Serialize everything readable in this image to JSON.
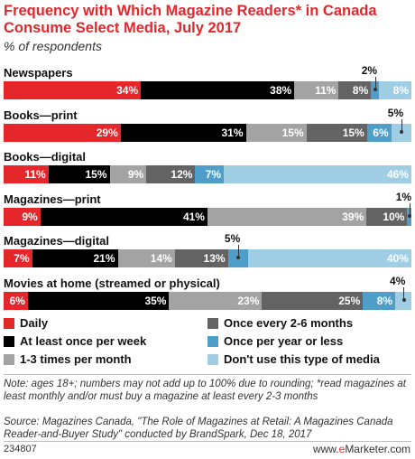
{
  "chart_data": {
    "type": "bar",
    "orientation": "horizontal",
    "stacked": true,
    "title": "Frequency with Which Magazine Readers* in Canada Consume Select Media, July 2017",
    "subtitle": "% of respondents",
    "categories": [
      "Newspapers",
      "Books—print",
      "Books—digital",
      "Magazines—print",
      "Magazines—digital",
      "Movies at home (streamed or physical)"
    ],
    "series": [
      {
        "name": "Daily",
        "color": "#e5262b",
        "values": [
          34,
          29,
          11,
          9,
          7,
          6
        ],
        "labels": [
          "34%",
          "29%",
          "11%",
          "9%",
          "7%",
          "6%"
        ]
      },
      {
        "name": "At least once per week",
        "color": "#000000",
        "values": [
          38,
          31,
          15,
          41,
          21,
          35
        ],
        "labels": [
          "38%",
          "31%",
          "15%",
          "41%",
          "21%",
          "35%"
        ]
      },
      {
        "name": "1-3 times per month",
        "color": "#a3a3a3",
        "values": [
          11,
          15,
          9,
          39,
          14,
          23
        ],
        "labels": [
          "11%",
          "15%",
          "9%",
          "39%",
          "14%",
          "23%"
        ]
      },
      {
        "name": "Once every 2-6 months",
        "color": "#636363",
        "values": [
          8,
          15,
          12,
          10,
          13,
          25
        ],
        "labels": [
          "8%",
          "15%",
          "12%",
          "10%",
          "13%",
          "25%"
        ]
      },
      {
        "name": "Once per year or less",
        "color": "#4e9ec9",
        "values": [
          2,
          6,
          7,
          1,
          5,
          8
        ],
        "labels": [
          "2%",
          "6%",
          "7%",
          "1%",
          "5%",
          "8%"
        ]
      },
      {
        "name": "Don't use this type of media",
        "color": "#9fcde3",
        "values": [
          8,
          5,
          46,
          0,
          40,
          4
        ],
        "labels": [
          "8%",
          "5%",
          "46%",
          "",
          "40%",
          "4%"
        ]
      }
    ],
    "xlim": [
      0,
      100
    ],
    "legend_position": "bottom",
    "grid": false
  },
  "footer": {
    "note": "Note: ages 18+; numbers may not add up to 100% due to rounding; *read magazines at least monthly and/or must buy a magazine at least every 2-3 months",
    "source": "Source: Magazines Canada, \"The Role of Magazines at Retail: A Magazines Canada Reader-and-Buyer Study\" conducted by BrandSpark, Dec 18, 2017",
    "chart_id": "234807",
    "brand_prefix": "www.",
    "brand_accent": "e",
    "brand_suffix": "Marketer.com"
  }
}
